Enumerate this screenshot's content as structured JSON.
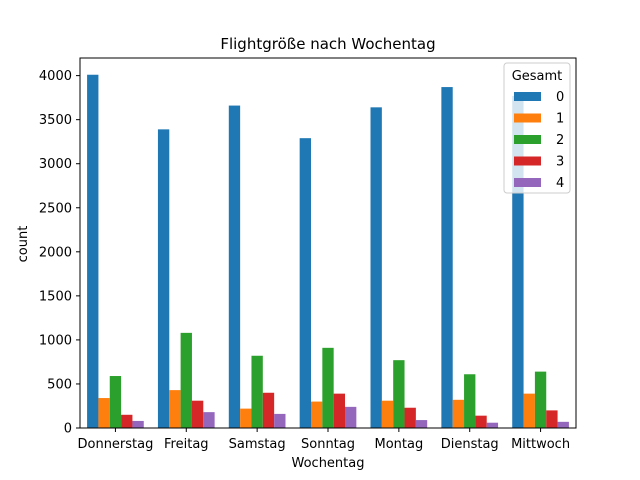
{
  "chart_data": {
    "type": "bar",
    "title": "Flightgröße nach Wochentag",
    "xlabel": "Wochentag",
    "ylabel": "count",
    "categories": [
      "Donnerstag",
      "Freitag",
      "Samstag",
      "Sonntag",
      "Montag",
      "Dienstag",
      "Mittwoch"
    ],
    "ylim": [
      0,
      4200
    ],
    "yticks": [
      0,
      500,
      1000,
      1500,
      2000,
      2500,
      3000,
      3500,
      4000
    ],
    "grid": false,
    "legend": {
      "title": "Gesamt",
      "placement": "top-right"
    },
    "series": [
      {
        "name": "0",
        "color": "#1f77b4",
        "values": [
          4010,
          3390,
          3660,
          3290,
          3640,
          3870,
          3770
        ]
      },
      {
        "name": "1",
        "color": "#ff7f0e",
        "values": [
          340,
          430,
          220,
          300,
          310,
          320,
          390
        ]
      },
      {
        "name": "2",
        "color": "#2ca02c",
        "values": [
          590,
          1080,
          820,
          910,
          770,
          610,
          640
        ]
      },
      {
        "name": "3",
        "color": "#d62728",
        "values": [
          150,
          310,
          400,
          390,
          230,
          140,
          200
        ]
      },
      {
        "name": "4",
        "color": "#9467bd",
        "values": [
          80,
          180,
          160,
          240,
          90,
          60,
          70
        ]
      }
    ]
  }
}
